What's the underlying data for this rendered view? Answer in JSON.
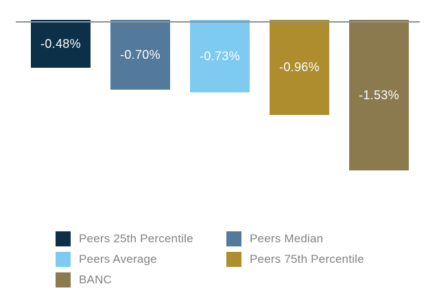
{
  "chart_data": {
    "type": "bar",
    "title": "",
    "xlabel": "",
    "ylabel": "",
    "ylim": [
      -1.7,
      0
    ],
    "baseline": 0,
    "grid": false,
    "axis_line_color": "#8e9294",
    "value_label_color": "#fdfdfc",
    "legend_position": "bottom",
    "legend_columns": 2,
    "legend_text_color": "#808285",
    "categories": [
      "Peers 25th Percentile",
      "Peers Median",
      "Peers Average",
      "Peers 75th Percentile",
      "BANC"
    ],
    "values": [
      -0.48,
      -0.7,
      -0.73,
      -0.96,
      -1.53
    ],
    "bars": [
      {
        "category": "Peers 25th Percentile",
        "value": -0.48,
        "label": "-0.48%",
        "color": "#0d3049",
        "slug": "peers-25th-percentile"
      },
      {
        "category": "Peers Median",
        "value": -0.7,
        "label": "-0.70%",
        "color": "#53799b",
        "slug": "peers-median"
      },
      {
        "category": "Peers Average",
        "value": -0.73,
        "label": "-0.73%",
        "color": "#7fcaf0",
        "slug": "peers-average"
      },
      {
        "category": "Peers 75th Percentile",
        "value": -0.96,
        "label": "-0.96%",
        "color": "#ad8d2d",
        "slug": "peers-75th-percentile"
      },
      {
        "category": "BANC",
        "value": -1.53,
        "label": "-1.53%",
        "color": "#8a7a4e",
        "slug": "banc"
      }
    ],
    "legend_items": [
      {
        "label": "Peers 25th Percentile",
        "color": "#0d3049",
        "slug": "peers-25th-percentile"
      },
      {
        "label": "Peers Median",
        "color": "#53799b",
        "slug": "peers-median"
      },
      {
        "label": "Peers Average",
        "color": "#7fcaf0",
        "slug": "peers-average"
      },
      {
        "label": "Peers 75th Percentile",
        "color": "#ad8d2d",
        "slug": "peers-75th-percentile"
      },
      {
        "label": "BANC",
        "color": "#8a7a4e",
        "slug": "banc"
      }
    ]
  }
}
